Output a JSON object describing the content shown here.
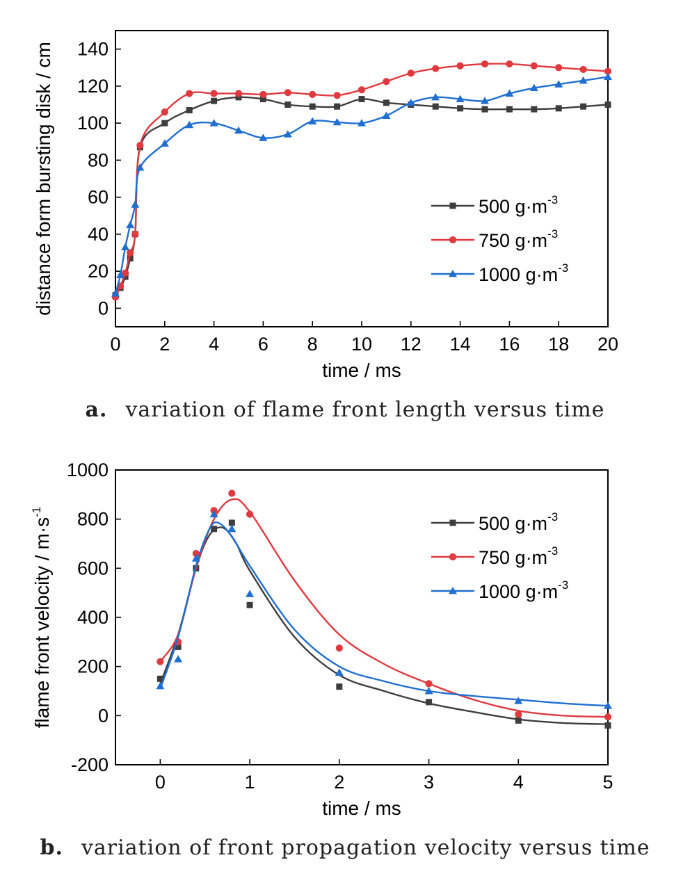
{
  "captions": {
    "a_letter": "a.",
    "a_text": "variation of flame front length versus time",
    "b_letter": "b.",
    "b_text": "variation of front propagation velocity versus time"
  },
  "colors": {
    "s500": "#3d3d3d",
    "s750": "#e0393e",
    "s1000": "#1f6fd1"
  },
  "chart_data": [
    {
      "type": "line",
      "xlabel": "time / ms",
      "ylabel": "distance form bursting disk / cm",
      "xlim": [
        0,
        20
      ],
      "ylim": [
        -10,
        150
      ],
      "xticks": [
        0,
        2,
        4,
        6,
        8,
        10,
        12,
        14,
        16,
        18,
        20
      ],
      "yticks": [
        0,
        20,
        40,
        60,
        80,
        100,
        120,
        140
      ],
      "grid": false,
      "legend_position": "right",
      "series": [
        {
          "name": "500 g·m",
          "sup": "-3",
          "color": "#3d3d3d",
          "marker": "square",
          "x": [
            0,
            0.2,
            0.4,
            0.6,
            0.8,
            1,
            2,
            3,
            4,
            5,
            6,
            7,
            8,
            9,
            10,
            11,
            12,
            13,
            14,
            15,
            16,
            17,
            18,
            19,
            20
          ],
          "y": [
            7,
            11,
            17,
            27,
            40,
            87,
            100,
            107,
            112,
            114,
            113,
            110,
            109,
            109,
            113,
            111,
            110,
            109,
            108,
            107.5,
            107.5,
            107.5,
            108,
            109,
            110
          ]
        },
        {
          "name": "750 g·m",
          "sup": "-3",
          "color": "#e0393e",
          "marker": "circle",
          "x": [
            0,
            0.2,
            0.4,
            0.6,
            0.8,
            1,
            2,
            3,
            4,
            5,
            6,
            7,
            8,
            9,
            10,
            11,
            12,
            13,
            14,
            15,
            16,
            17,
            18,
            19,
            20
          ],
          "y": [
            6,
            12,
            19,
            30,
            40,
            88,
            106,
            116,
            116,
            116,
            115.5,
            116.5,
            115.5,
            115,
            118,
            122.5,
            127,
            129.5,
            131,
            132,
            132,
            131,
            130,
            129,
            128
          ]
        },
        {
          "name": "1000 g·m",
          "sup": "-3",
          "color": "#1f6fd1",
          "marker": "triangle",
          "x": [
            0,
            0.2,
            0.4,
            0.6,
            0.8,
            1,
            2,
            3,
            4,
            5,
            6,
            7,
            8,
            9,
            10,
            11,
            12,
            13,
            14,
            15,
            16,
            17,
            18,
            19,
            20
          ],
          "y": [
            8,
            18,
            33,
            45,
            56,
            76,
            89,
            99,
            100,
            96,
            92,
            94,
            101,
            100.5,
            100,
            104,
            111,
            114,
            113,
            112,
            116,
            119,
            121,
            123,
            125
          ]
        }
      ]
    },
    {
      "type": "line",
      "xlabel": "time  / ms",
      "ylabel": "flame front velocity / m·s",
      "ylabel_sup": "-1",
      "xlim": [
        -0.5,
        5
      ],
      "ylim": [
        -200,
        1000
      ],
      "xticks": [
        0,
        1,
        2,
        3,
        4,
        5
      ],
      "yticks": [
        -200,
        0,
        200,
        400,
        600,
        800,
        1000
      ],
      "grid": false,
      "legend_position": "top-right",
      "series": [
        {
          "name": "500 g·m",
          "sup": "-3",
          "color": "#3d3d3d",
          "marker": "square",
          "x": [
            0,
            0.2,
            0.4,
            0.6,
            0.8,
            1,
            2,
            3,
            4,
            5
          ],
          "y": [
            150,
            280,
            600,
            760,
            785,
            450,
            118,
            55,
            -20,
            -40
          ],
          "fit_x": [
            0,
            0.2,
            0.4,
            0.55,
            0.7,
            0.85,
            1,
            1.5,
            2,
            2.5,
            3,
            3.5,
            4,
            4.5,
            5
          ],
          "fit_y": [
            130,
            330,
            600,
            735,
            765,
            700,
            590,
            320,
            165,
            100,
            50,
            15,
            -15,
            -30,
            -35
          ]
        },
        {
          "name": "750 g·m",
          "sup": "-3",
          "color": "#e0393e",
          "marker": "circle",
          "x": [
            0,
            0.2,
            0.4,
            0.6,
            0.8,
            1,
            2,
            3,
            4,
            5
          ],
          "y": [
            220,
            300,
            660,
            835,
            905,
            820,
            275,
            130,
            5,
            -5
          ],
          "fit_x": [
            0,
            0.2,
            0.4,
            0.6,
            0.8,
            1,
            1.5,
            2,
            2.5,
            3,
            3.5,
            4,
            4.5,
            5
          ],
          "fit_y": [
            220,
            330,
            600,
            800,
            880,
            830,
            550,
            330,
            210,
            130,
            65,
            20,
            0,
            -5
          ]
        },
        {
          "name": "1000 g·m",
          "sup": "-3",
          "color": "#1f6fd1",
          "marker": "triangle",
          "x": [
            0,
            0.2,
            0.4,
            0.6,
            0.8,
            1,
            2,
            3,
            4,
            5
          ],
          "y": [
            120,
            230,
            640,
            820,
            760,
            495,
            175,
            100,
            60,
            40
          ],
          "fit_x": [
            0,
            0.2,
            0.4,
            0.55,
            0.65,
            0.8,
            1,
            1.5,
            2,
            2.5,
            3,
            3.5,
            4,
            4.5,
            5
          ],
          "fit_y": [
            110,
            320,
            610,
            760,
            785,
            730,
            610,
            350,
            200,
            140,
            100,
            80,
            65,
            50,
            40
          ]
        }
      ]
    }
  ]
}
